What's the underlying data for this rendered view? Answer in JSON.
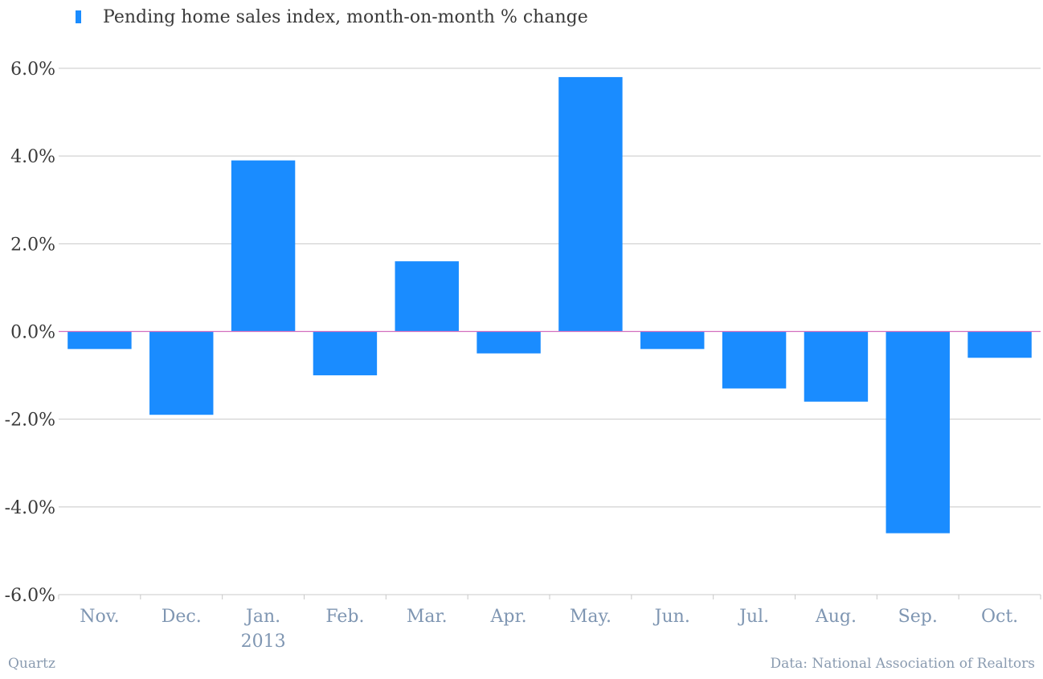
{
  "legend": {
    "label": "Pending home sales index, month-on-month % change",
    "color": "#1a8cff"
  },
  "footer": {
    "source_brand": "Quartz",
    "credit": "Data: National Association of Realtors"
  },
  "chart_data": {
    "type": "bar",
    "categories": [
      "Nov.",
      "Dec.",
      "Jan.",
      "Feb.",
      "Mar.",
      "Apr.",
      "May.",
      "Jun.",
      "Jul.",
      "Aug.",
      "Sep.",
      "Oct."
    ],
    "category_sublabels": {
      "Jan.": "2013"
    },
    "series": [
      {
        "name": "Pending home sales index, month-on-month % change",
        "values": [
          -0.4,
          -1.9,
          3.9,
          -1.0,
          1.6,
          -0.5,
          5.8,
          -0.4,
          -1.3,
          -1.6,
          -4.6,
          -0.6
        ]
      }
    ],
    "ylim": [
      -6,
      6
    ],
    "yticks": [
      6,
      4,
      2,
      0,
      -2,
      -4,
      -6
    ],
    "ytick_labels": [
      "6.0%",
      "4.0%",
      "2.0%",
      "0.0%",
      "-2.0%",
      "-4.0%",
      "-6.0%"
    ],
    "grid": true,
    "legend_position": "top-left",
    "colors": {
      "bar": "#1a8cff",
      "zero_line": "#d36fbf",
      "grid": "#c8c8c8",
      "axis_text": "#3a3a3a",
      "category_text": "#7f96b2"
    }
  }
}
